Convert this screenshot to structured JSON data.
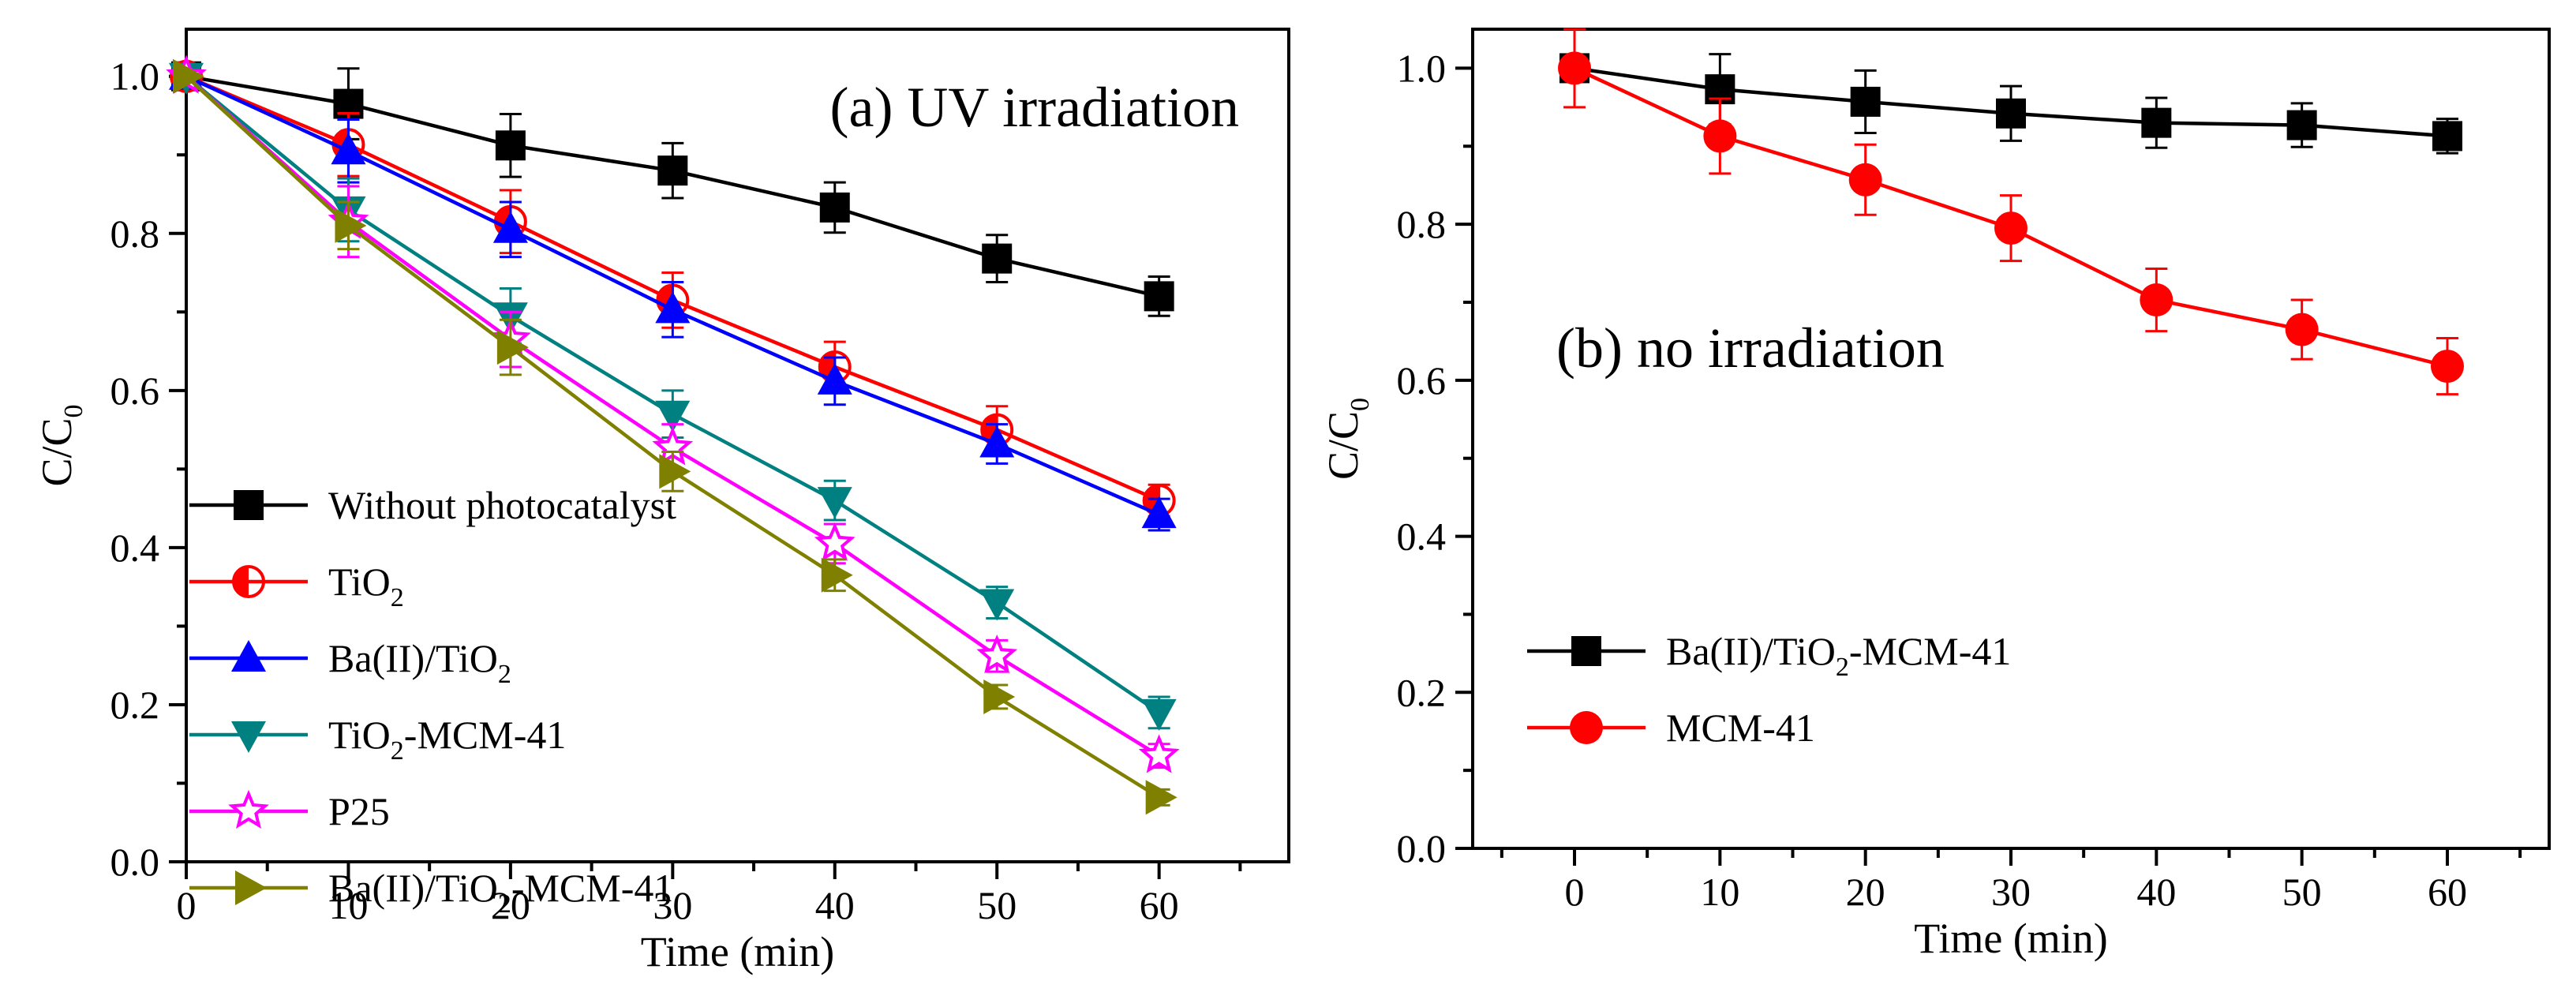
{
  "chart_data": [
    {
      "type": "line",
      "title": "(a) UV irradiation",
      "title_parts": [
        "(a) UV irradiation"
      ],
      "xlabel": "Time (min)",
      "ylabel_parts": [
        "C/C",
        "0"
      ],
      "xlim": [
        0,
        68
      ],
      "ylim": [
        0.0,
        1.06
      ],
      "xticks": [
        0,
        10,
        20,
        30,
        40,
        50,
        60
      ],
      "xtick_labels": [
        "0",
        "10",
        "20",
        "30",
        "40",
        "50",
        "60"
      ],
      "yticks": [
        0.0,
        0.2,
        0.4,
        0.6,
        0.8,
        1.0
      ],
      "ytick_labels": [
        "0.0",
        "0.2",
        "0.4",
        "0.6",
        "0.8",
        "1.0"
      ],
      "legend_position": "left, lower half",
      "x": [
        0,
        10,
        20,
        30,
        40,
        50,
        60
      ],
      "series": [
        {
          "name": "Without photocatalyst",
          "label_parts": [
            "Without photocatalyst"
          ],
          "color": "#000000",
          "marker": "square",
          "values": [
            1.0,
            0.965,
            0.912,
            0.88,
            0.833,
            0.768,
            0.72
          ],
          "errors": [
            0,
            0.045,
            0.04,
            0.035,
            0.032,
            0.03,
            0.025
          ]
        },
        {
          "name": "TiO2",
          "label_parts": [
            "TiO",
            "2"
          ],
          "color": "#ff0000",
          "marker": "half-circle",
          "values": [
            1.0,
            0.913,
            0.815,
            0.715,
            0.63,
            0.55,
            0.46
          ],
          "errors": [
            0,
            0.04,
            0.04,
            0.035,
            0.032,
            0.03,
            0.02
          ]
        },
        {
          "name": "Ba(II)/TiO2",
          "label_parts": [
            "Ba(II)/TiO",
            "2"
          ],
          "color": "#0000ff",
          "marker": "triangle-up",
          "values": [
            1.0,
            0.905,
            0.805,
            0.703,
            0.612,
            0.532,
            0.442
          ],
          "errors": [
            0,
            0.04,
            0.035,
            0.035,
            0.03,
            0.025,
            0.02
          ]
        },
        {
          "name": "TiO2-MCM-41",
          "label_parts": [
            "TiO",
            "2",
            "-MCM-41"
          ],
          "color": "#008080",
          "marker": "triangle-down",
          "values": [
            1.0,
            0.83,
            0.695,
            0.57,
            0.46,
            0.33,
            0.19
          ],
          "errors": [
            0,
            0.04,
            0.035,
            0.03,
            0.025,
            0.02,
            0.02
          ]
        },
        {
          "name": "P25",
          "label_parts": [
            "P25"
          ],
          "color": "#ff00ff",
          "marker": "star",
          "values": [
            1.0,
            0.815,
            0.665,
            0.527,
            0.405,
            0.262,
            0.135
          ],
          "errors": [
            0,
            0.045,
            0.035,
            0.03,
            0.025,
            0.02,
            0.015
          ]
        },
        {
          "name": "Ba(II)/TiO2-MCM-41",
          "label_parts": [
            "Ba(II)/TiO",
            "2",
            "-MCM-41"
          ],
          "color": "#808000",
          "marker": "triangle-right",
          "values": [
            1.0,
            0.81,
            0.655,
            0.497,
            0.365,
            0.21,
            0.082
          ],
          "errors": [
            0,
            0.03,
            0.035,
            0.025,
            0.02,
            0.015,
            0.01
          ]
        }
      ]
    },
    {
      "type": "line",
      "title": "(b) no irradiation",
      "title_parts": [
        "(b) no irradiation"
      ],
      "xlabel": "Time (min)",
      "ylabel_parts": [
        "C/C",
        "0"
      ],
      "xlim": [
        -7,
        67
      ],
      "ylim": [
        0.0,
        1.05
      ],
      "xticks": [
        0,
        10,
        20,
        30,
        40,
        50,
        60
      ],
      "xtick_labels": [
        "0",
        "10",
        "20",
        "30",
        "40",
        "50",
        "60"
      ],
      "yticks": [
        0.0,
        0.2,
        0.4,
        0.6,
        0.8,
        1.0
      ],
      "ytick_labels": [
        "0.0",
        "0.2",
        "0.4",
        "0.6",
        "0.8",
        "1.0"
      ],
      "legend_position": "left, lower half",
      "x": [
        0,
        10,
        20,
        30,
        40,
        50,
        60
      ],
      "series": [
        {
          "name": "Ba(II)/TiO2-MCM-41",
          "label_parts": [
            "Ba(II)/TiO",
            "2",
            "-MCM-41"
          ],
          "color": "#000000",
          "marker": "square",
          "values": [
            1.0,
            0.973,
            0.957,
            0.942,
            0.93,
            0.927,
            0.913
          ],
          "errors": [
            0,
            0.045,
            0.04,
            0.035,
            0.032,
            0.028,
            0.022
          ]
        },
        {
          "name": "MCM-41",
          "label_parts": [
            "MCM-41"
          ],
          "color": "#ff0000",
          "marker": "circle",
          "values": [
            1.0,
            0.913,
            0.857,
            0.795,
            0.703,
            0.665,
            0.618
          ],
          "errors": [
            0.05,
            0.048,
            0.045,
            0.042,
            0.04,
            0.038,
            0.036
          ]
        }
      ]
    }
  ]
}
